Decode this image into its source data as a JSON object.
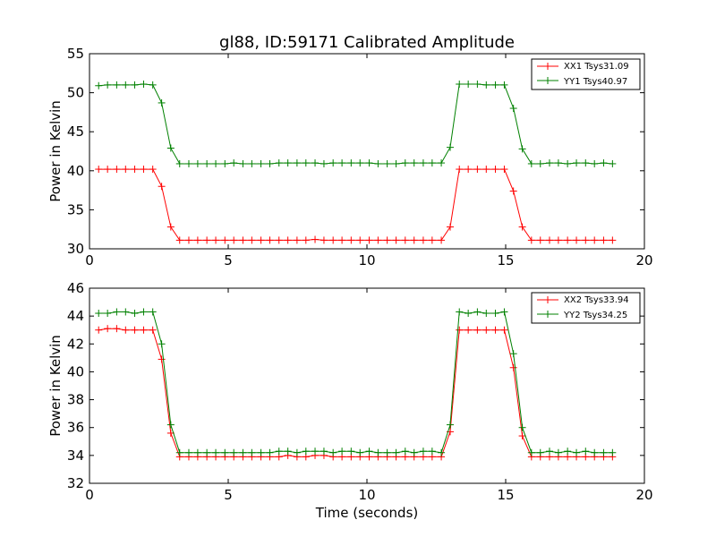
{
  "title": "gl88, ID:59171 Calibrated Amplitude",
  "colors": {
    "xx": "#ff0000",
    "yy": "#008000"
  },
  "chart_data": [
    {
      "type": "line",
      "title": "gl88, ID:59171 Calibrated Amplitude",
      "xlabel": "",
      "ylabel": "Power in Kelvin",
      "xlim": [
        0,
        20
      ],
      "ylim": [
        30,
        55
      ],
      "xticks": [
        "0",
        "5",
        "10",
        "15",
        "20"
      ],
      "yticks": [
        "30",
        "35",
        "40",
        "45",
        "50",
        "55"
      ],
      "legend_position": "top-right",
      "x": [
        0.33,
        0.65,
        0.98,
        1.3,
        1.63,
        1.95,
        2.28,
        2.6,
        2.93,
        3.25,
        3.58,
        3.9,
        4.23,
        4.55,
        4.88,
        5.2,
        5.53,
        5.85,
        6.18,
        6.5,
        6.83,
        7.15,
        7.48,
        7.8,
        8.13,
        8.45,
        8.78,
        9.1,
        9.43,
        9.75,
        10.08,
        10.4,
        10.73,
        11.05,
        11.38,
        11.7,
        12.03,
        12.35,
        12.68,
        13.0,
        13.33,
        13.65,
        13.98,
        14.3,
        14.63,
        14.95,
        15.28,
        15.6,
        15.93,
        16.25,
        16.58,
        16.9,
        17.23,
        17.55,
        17.88,
        18.2,
        18.53,
        18.85
      ],
      "series": [
        {
          "name": "XX1 Tsys31.09",
          "color": "#ff0000",
          "values": [
            40.2,
            40.2,
            40.2,
            40.2,
            40.2,
            40.2,
            40.2,
            38.0,
            32.8,
            31.1,
            31.1,
            31.1,
            31.1,
            31.1,
            31.1,
            31.1,
            31.1,
            31.1,
            31.1,
            31.1,
            31.1,
            31.1,
            31.1,
            31.1,
            31.2,
            31.1,
            31.1,
            31.1,
            31.1,
            31.1,
            31.1,
            31.1,
            31.1,
            31.1,
            31.1,
            31.1,
            31.1,
            31.1,
            31.1,
            32.8,
            40.2,
            40.2,
            40.2,
            40.2,
            40.2,
            40.2,
            37.4,
            32.8,
            31.1,
            31.1,
            31.1,
            31.1,
            31.1,
            31.1,
            31.1,
            31.1,
            31.1,
            31.1
          ]
        },
        {
          "name": "YY1 Tsys40.97",
          "color": "#008000",
          "values": [
            50.9,
            51.0,
            51.0,
            51.0,
            51.0,
            51.1,
            51.0,
            48.7,
            42.9,
            40.9,
            40.9,
            40.9,
            40.9,
            40.9,
            40.9,
            41.0,
            40.9,
            40.9,
            40.9,
            40.9,
            41.0,
            41.0,
            41.0,
            41.0,
            41.0,
            40.9,
            41.0,
            41.0,
            41.0,
            41.0,
            41.0,
            40.9,
            40.9,
            40.9,
            41.0,
            41.0,
            41.0,
            41.0,
            41.0,
            43.0,
            51.1,
            51.1,
            51.1,
            51.0,
            51.0,
            51.0,
            48.0,
            42.8,
            40.9,
            40.9,
            41.0,
            41.0,
            40.9,
            41.0,
            41.0,
            40.9,
            41.0,
            40.9
          ]
        }
      ]
    },
    {
      "type": "line",
      "title": "",
      "xlabel": "Time (seconds)",
      "ylabel": "Power in Kelvin",
      "xlim": [
        0,
        20
      ],
      "ylim": [
        32,
        46
      ],
      "xticks": [
        "0",
        "5",
        "10",
        "15",
        "20"
      ],
      "yticks": [
        "32",
        "34",
        "36",
        "38",
        "40",
        "42",
        "44",
        "46"
      ],
      "legend_position": "top-right",
      "x": [
        0.33,
        0.65,
        0.98,
        1.3,
        1.63,
        1.95,
        2.28,
        2.6,
        2.93,
        3.25,
        3.58,
        3.9,
        4.23,
        4.55,
        4.88,
        5.2,
        5.53,
        5.85,
        6.18,
        6.5,
        6.83,
        7.15,
        7.48,
        7.8,
        8.13,
        8.45,
        8.78,
        9.1,
        9.43,
        9.75,
        10.08,
        10.4,
        10.73,
        11.05,
        11.38,
        11.7,
        12.03,
        12.35,
        12.68,
        13.0,
        13.33,
        13.65,
        13.98,
        14.3,
        14.63,
        14.95,
        15.28,
        15.6,
        15.93,
        16.25,
        16.58,
        16.9,
        17.23,
        17.55,
        17.88,
        18.2,
        18.53,
        18.85
      ],
      "series": [
        {
          "name": "XX2 Tsys33.94",
          "color": "#ff0000",
          "values": [
            43.0,
            43.1,
            43.1,
            43.0,
            43.0,
            43.0,
            43.0,
            40.9,
            35.6,
            33.9,
            33.9,
            33.9,
            33.9,
            33.9,
            33.9,
            33.9,
            33.9,
            33.9,
            33.9,
            33.9,
            33.9,
            34.0,
            33.9,
            33.9,
            34.0,
            34.0,
            33.9,
            33.9,
            33.9,
            33.9,
            33.9,
            33.9,
            33.9,
            33.9,
            33.9,
            33.9,
            33.9,
            33.9,
            33.9,
            35.7,
            43.0,
            43.0,
            43.0,
            43.0,
            43.0,
            43.0,
            40.3,
            35.4,
            33.9,
            33.9,
            33.9,
            33.9,
            33.9,
            33.9,
            33.9,
            33.9,
            33.9,
            33.9
          ]
        },
        {
          "name": "YY2 Tsys34.25",
          "color": "#008000",
          "values": [
            44.2,
            44.2,
            44.3,
            44.3,
            44.2,
            44.3,
            44.3,
            42.0,
            36.2,
            34.2,
            34.2,
            34.2,
            34.2,
            34.2,
            34.2,
            34.2,
            34.2,
            34.2,
            34.2,
            34.2,
            34.3,
            34.3,
            34.2,
            34.3,
            34.3,
            34.3,
            34.2,
            34.3,
            34.3,
            34.2,
            34.3,
            34.2,
            34.2,
            34.2,
            34.3,
            34.2,
            34.3,
            34.3,
            34.2,
            36.2,
            44.3,
            44.2,
            44.3,
            44.2,
            44.2,
            44.3,
            41.3,
            36.0,
            34.2,
            34.2,
            34.3,
            34.2,
            34.3,
            34.2,
            34.3,
            34.2,
            34.2,
            34.2
          ]
        }
      ]
    }
  ]
}
